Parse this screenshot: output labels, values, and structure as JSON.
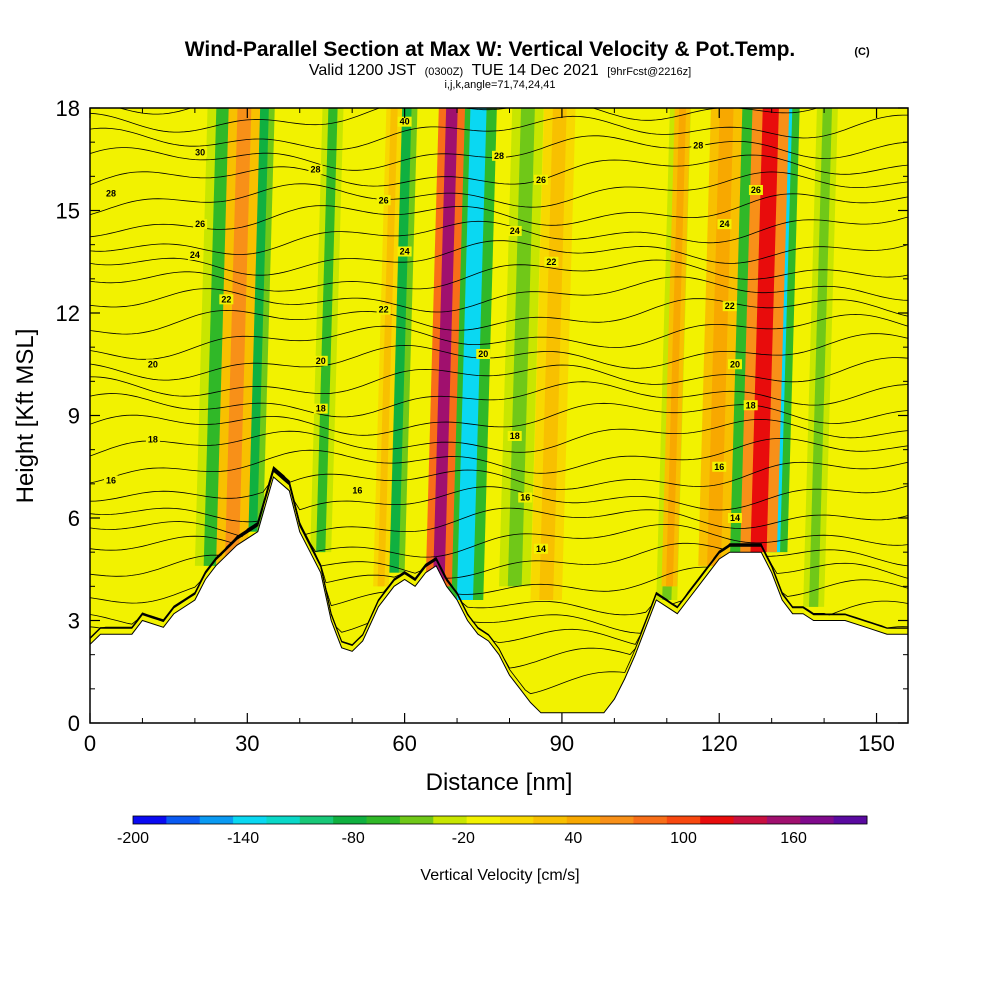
{
  "header": {
    "title": "Wind-Parallel Section at Max W: Vertical Velocity & Pot.Temp.",
    "copyright": "(C)",
    "valid_prefix": "Valid 1200 JST",
    "utc": "(0300Z)",
    "valid_date": "TUE 14 Dec 2021",
    "forecast": "[9hrFcst@2216z]",
    "indices": "i,j,k,angle=71,74,24,41"
  },
  "chart_data": {
    "type": "heatmap",
    "xlabel": "Distance [nm]",
    "ylabel": "Height [Kft MSL]",
    "xlim": [
      0,
      156
    ],
    "ylim": [
      0,
      18
    ],
    "x_ticks": [
      "0",
      "30",
      "60",
      "90",
      "120",
      "150"
    ],
    "y_ticks": [
      "0",
      "3",
      "6",
      "9",
      "12",
      "15",
      "18"
    ],
    "x_tick_values": [
      0,
      30,
      60,
      90,
      120,
      150
    ],
    "y_tick_values": [
      0,
      3,
      6,
      9,
      12,
      15,
      18
    ],
    "background_color": "#f2f200",
    "terrain": [
      [
        0,
        2.3
      ],
      [
        2,
        2.6
      ],
      [
        8,
        2.6
      ],
      [
        10,
        3.0
      ],
      [
        14,
        2.8
      ],
      [
        16,
        3.2
      ],
      [
        20,
        3.6
      ],
      [
        22,
        4.2
      ],
      [
        24,
        4.6
      ],
      [
        28,
        5.2
      ],
      [
        32,
        5.6
      ],
      [
        35,
        7.2
      ],
      [
        38,
        6.8
      ],
      [
        40,
        5.6
      ],
      [
        42,
        5.0
      ],
      [
        44,
        4.4
      ],
      [
        46,
        3.0
      ],
      [
        47,
        2.6
      ],
      [
        48,
        2.2
      ],
      [
        50,
        2.1
      ],
      [
        52,
        2.4
      ],
      [
        55,
        3.4
      ],
      [
        58,
        4.0
      ],
      [
        60,
        4.2
      ],
      [
        62,
        4.0
      ],
      [
        64,
        4.4
      ],
      [
        66,
        4.6
      ],
      [
        68,
        4.0
      ],
      [
        70,
        3.6
      ],
      [
        72,
        3.0
      ],
      [
        74,
        2.6
      ],
      [
        76,
        2.4
      ],
      [
        78,
        2.0
      ],
      [
        80,
        1.4
      ],
      [
        82,
        1.0
      ],
      [
        84,
        0.6
      ],
      [
        86,
        0.3
      ],
      [
        90,
        0.3
      ],
      [
        95,
        0.3
      ],
      [
        98,
        0.3
      ],
      [
        100,
        0.7
      ],
      [
        102,
        1.3
      ],
      [
        104,
        2.0
      ],
      [
        106,
        2.8
      ],
      [
        108,
        3.6
      ],
      [
        110,
        3.4
      ],
      [
        112,
        3.2
      ],
      [
        114,
        3.6
      ],
      [
        116,
        4.0
      ],
      [
        118,
        4.4
      ],
      [
        120,
        4.8
      ],
      [
        122,
        5.0
      ],
      [
        124,
        5.0
      ],
      [
        128,
        5.0
      ],
      [
        130,
        4.4
      ],
      [
        132,
        3.6
      ],
      [
        134,
        3.2
      ],
      [
        136,
        3.2
      ],
      [
        138,
        3.0
      ],
      [
        140,
        3.0
      ],
      [
        144,
        3.0
      ],
      [
        148,
        2.8
      ],
      [
        152,
        2.6
      ],
      [
        156,
        2.6
      ]
    ],
    "updraft_bands": [
      {
        "x0": 24,
        "x1": 30,
        "z0": 4.4,
        "z1": 18,
        "value": 70
      },
      {
        "x0": 54,
        "x1": 57,
        "z0": 4.0,
        "z1": 18,
        "value": 30
      },
      {
        "x0": 64,
        "x1": 69,
        "z0": 4.0,
        "z1": 18,
        "value": 160
      },
      {
        "x0": 84,
        "x1": 90,
        "z0": 3.6,
        "z1": 18,
        "value": 30
      },
      {
        "x0": 109,
        "x1": 112,
        "z0": 4.0,
        "z1": 18,
        "value": 40
      },
      {
        "x0": 116,
        "x1": 122,
        "z0": 4.6,
        "z1": 18,
        "value": 40
      },
      {
        "x0": 124,
        "x1": 131,
        "z0": 5.0,
        "z1": 18,
        "value": 120
      }
    ],
    "downdraft_bands": [
      {
        "x0": 20,
        "x1": 26,
        "z0": 4.6,
        "z1": 18,
        "value": -60
      },
      {
        "x0": 29,
        "x1": 33,
        "z0": 5.6,
        "z1": 18,
        "value": -80
      },
      {
        "x0": 42,
        "x1": 46,
        "z0": 5.0,
        "z1": 18,
        "value": -60
      },
      {
        "x0": 56,
        "x1": 60,
        "z0": 4.4,
        "z1": 18,
        "value": -80
      },
      {
        "x0": 68,
        "x1": 75,
        "z0": 3.6,
        "z1": 18,
        "value": -140
      },
      {
        "x0": 78,
        "x1": 84,
        "z0": 4.0,
        "z1": 18,
        "value": -40
      },
      {
        "x0": 108,
        "x1": 112,
        "z0": 3.6,
        "z1": 18,
        "value": -40
      },
      {
        "x0": 120,
        "x1": 126,
        "z0": 5.0,
        "z1": 18,
        "value": -60
      },
      {
        "x0": 128,
        "x1": 133,
        "z0": 5.0,
        "z1": 18,
        "value": -140
      },
      {
        "x0": 136,
        "x1": 140,
        "z0": 3.4,
        "z1": 18,
        "value": -40
      }
    ],
    "isentrope_labels": [
      {
        "text": "40",
        "x": 60,
        "z": 17.6
      },
      {
        "text": "30",
        "x": 21,
        "z": 16.7
      },
      {
        "text": "28",
        "x": 4,
        "z": 15.5
      },
      {
        "text": "28",
        "x": 43,
        "z": 16.2
      },
      {
        "text": "28",
        "x": 78,
        "z": 16.6
      },
      {
        "text": "28",
        "x": 116,
        "z": 16.9
      },
      {
        "text": "26",
        "x": 21,
        "z": 14.6
      },
      {
        "text": "26",
        "x": 56,
        "z": 15.3
      },
      {
        "text": "26",
        "x": 86,
        "z": 15.9
      },
      {
        "text": "26",
        "x": 127,
        "z": 15.6
      },
      {
        "text": "24",
        "x": 20,
        "z": 13.7
      },
      {
        "text": "24",
        "x": 60,
        "z": 13.8
      },
      {
        "text": "24",
        "x": 81,
        "z": 14.4
      },
      {
        "text": "24",
        "x": 121,
        "z": 14.6
      },
      {
        "text": "22",
        "x": 26,
        "z": 12.4
      },
      {
        "text": "22",
        "x": 56,
        "z": 12.1
      },
      {
        "text": "22",
        "x": 88,
        "z": 13.5
      },
      {
        "text": "22",
        "x": 122,
        "z": 12.2
      },
      {
        "text": "20",
        "x": 12,
        "z": 10.5
      },
      {
        "text": "20",
        "x": 44,
        "z": 10.6
      },
      {
        "text": "20",
        "x": 75,
        "z": 10.8
      },
      {
        "text": "20",
        "x": 123,
        "z": 10.5
      },
      {
        "text": "18",
        "x": 12,
        "z": 8.3
      },
      {
        "text": "18",
        "x": 44,
        "z": 9.2
      },
      {
        "text": "18",
        "x": 81,
        "z": 8.4
      },
      {
        "text": "18",
        "x": 126,
        "z": 9.3
      },
      {
        "text": "16",
        "x": 4,
        "z": 7.1
      },
      {
        "text": "16",
        "x": 51,
        "z": 6.8
      },
      {
        "text": "16",
        "x": 83,
        "z": 6.6
      },
      {
        "text": "16",
        "x": 120,
        "z": 7.5
      },
      {
        "text": "14",
        "x": 86,
        "z": 5.1
      },
      {
        "text": "14",
        "x": 123,
        "z": 6.0
      }
    ],
    "colorbar": {
      "label": "Vertical Velocity [cm/s]",
      "tick_labels": [
        "-200",
        "-140",
        "-80",
        "-20",
        "40",
        "100",
        "160"
      ],
      "colors": [
        "#0a0af2",
        "#0a5af2",
        "#0a9af2",
        "#0ad8f2",
        "#0ad8c8",
        "#18c878",
        "#10b040",
        "#30b828",
        "#70c818",
        "#c8e600",
        "#f2f200",
        "#f8d800",
        "#f8c000",
        "#f8a800",
        "#f89018",
        "#f86e18",
        "#f84810",
        "#e80c0c",
        "#c81040",
        "#a0106e",
        "#800a8c",
        "#5a0aa0"
      ]
    }
  }
}
